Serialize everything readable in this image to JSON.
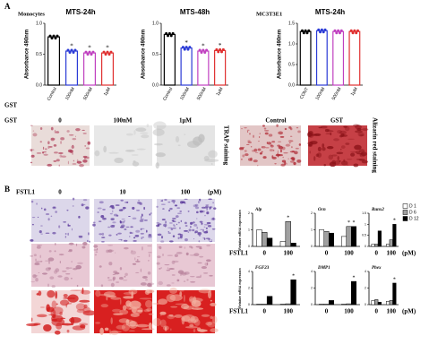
{
  "panels": {
    "a": "A",
    "b": "B"
  },
  "gst_chart_label": "GST",
  "image_row_a": {
    "label": "GST",
    "trap_labels": [
      "0",
      "100nM",
      "1μM"
    ],
    "trap_stain": "TRAP staining",
    "alizarin_labels": [
      "Control",
      "GST"
    ],
    "alizarin_stain": "Alizarin red staining"
  },
  "fstl1_header": {
    "label": "FSTL1",
    "doses": [
      "0",
      "10",
      "100"
    ],
    "unit": "(pM)"
  },
  "day_legend": [
    {
      "name": "D 1",
      "color": "#ffffff"
    },
    {
      "name": "D 6",
      "color": "#a0a0a0"
    },
    {
      "name": "D 12",
      "color": "#000000"
    }
  ],
  "chart_data": [
    {
      "type": "bar",
      "group_label": "Monocytes",
      "title": "MTS-24h",
      "ylabel": "Absorbance 490nm",
      "categories": [
        "Control",
        "100nM",
        "500nM",
        "1μM"
      ],
      "values": [
        0.78,
        0.55,
        0.52,
        0.52
      ],
      "colors": [
        "#000000",
        "#2b3bd6",
        "#c040c0",
        "#e03030"
      ],
      "stars": [
        null,
        "*",
        "*",
        "*"
      ],
      "ylim": [
        0,
        1
      ],
      "yticks": [
        {
          "value": 0,
          "label": "0.0"
        },
        0.5,
        {
          "value": 1,
          "label": "1.0"
        }
      ]
    },
    {
      "type": "bar",
      "title": "MTS-48h",
      "ylabel": "Absorbance 490nm",
      "categories": [
        "Control",
        "100nM",
        "500nM",
        "1μM"
      ],
      "values": [
        0.82,
        0.6,
        0.55,
        0.56
      ],
      "colors": [
        "#000000",
        "#2b3bd6",
        "#c040c0",
        "#e03030"
      ],
      "stars": [
        null,
        "*",
        "*",
        "*"
      ],
      "ylim": [
        0,
        1
      ],
      "yticks": [
        {
          "value": 0,
          "label": "0.0"
        },
        0.5,
        {
          "value": 1,
          "label": "1.0"
        }
      ]
    },
    {
      "type": "bar",
      "group_label": "MC3T3E1",
      "title": "MTS-24h",
      "ylabel": "Absorbance 490nm",
      "categories": [
        "CONT",
        "100nM",
        "500nM",
        "1μM"
      ],
      "values": [
        1.3,
        1.32,
        1.3,
        1.3
      ],
      "colors": [
        "#000000",
        "#2b3bd6",
        "#c040c0",
        "#e03030"
      ],
      "ylim": [
        0,
        1.5
      ],
      "yticks": [
        {
          "value": 0,
          "label": "0.0"
        },
        0.5,
        {
          "value": 1,
          "label": "1.0"
        },
        1.5
      ]
    },
    {
      "type": "grouped-bar",
      "title": "Alp",
      "ylabel": "Relative mRNA expression",
      "x_label": "FSTL1",
      "categories": [
        "0",
        "100"
      ],
      "series": [
        {
          "values": [
            1.0,
            0.3
          ]
        },
        {
          "values": [
            0.85,
            1.5
          ],
          "stars": [
            null,
            "*"
          ]
        },
        {
          "values": [
            0.5,
            0.2
          ]
        }
      ],
      "ylim": [
        0,
        2
      ],
      "yticks": [
        0,
        1,
        2
      ]
    },
    {
      "type": "grouped-bar",
      "title": "Ocn",
      "categories": [
        "0",
        "100"
      ],
      "series": [
        {
          "values": [
            1.0,
            0.6
          ]
        },
        {
          "values": [
            0.9,
            1.2
          ],
          "stars": [
            null,
            "*"
          ]
        },
        {
          "values": [
            0.8,
            1.2
          ],
          "stars": [
            null,
            "*"
          ]
        }
      ],
      "ylim": [
        0,
        2
      ],
      "yticks": [
        0,
        1,
        2
      ]
    },
    {
      "type": "grouped-bar",
      "title": "Runx2",
      "unit": "(pM)",
      "categories": [
        "0",
        "100"
      ],
      "series": [
        {
          "values": [
            0.1,
            0.1
          ]
        },
        {
          "values": [
            0.1,
            0.3
          ]
        },
        {
          "values": [
            0.7,
            1.0
          ],
          "stars": [
            null,
            "*"
          ]
        }
      ],
      "ylim": [
        0,
        1.5
      ],
      "yticks": [
        0,
        0.5,
        1,
        1.5
      ]
    },
    {
      "type": "grouped-bar",
      "title": "FGF23",
      "ylabel": "Relative mRNA expression",
      "x_label": "FSTL1",
      "categories": [
        "0",
        "100"
      ],
      "series": [
        {
          "values": [
            0.05,
            0.05
          ]
        },
        {
          "values": [
            0.05,
            0.1
          ]
        },
        {
          "values": [
            1.0,
            3.0
          ],
          "stars": [
            null,
            "*"
          ]
        }
      ],
      "ylim": [
        0,
        4
      ],
      "yticks": [
        0,
        2,
        4
      ]
    },
    {
      "type": "grouped-bar",
      "title": "DMP1",
      "categories": [
        "0",
        "100"
      ],
      "series": [
        {
          "values": [
            0.05,
            0.05
          ]
        },
        {
          "values": [
            0.05,
            0.1
          ]
        },
        {
          "values": [
            0.5,
            2.8
          ],
          "stars": [
            null,
            "*"
          ]
        }
      ],
      "ylim": [
        0,
        4
      ],
      "yticks": [
        0,
        2,
        4
      ]
    },
    {
      "type": "grouped-bar",
      "title": "Phex",
      "unit": "(pM)",
      "categories": [
        "0",
        "100"
      ],
      "series": [
        {
          "values": [
            0.5,
            0.4
          ]
        },
        {
          "values": [
            0.6,
            0.5
          ]
        },
        {
          "values": [
            0.3,
            2.6
          ],
          "stars": [
            null,
            "*"
          ]
        }
      ],
      "ylim": [
        0,
        4
      ],
      "yticks": [
        0,
        2,
        4
      ]
    }
  ]
}
